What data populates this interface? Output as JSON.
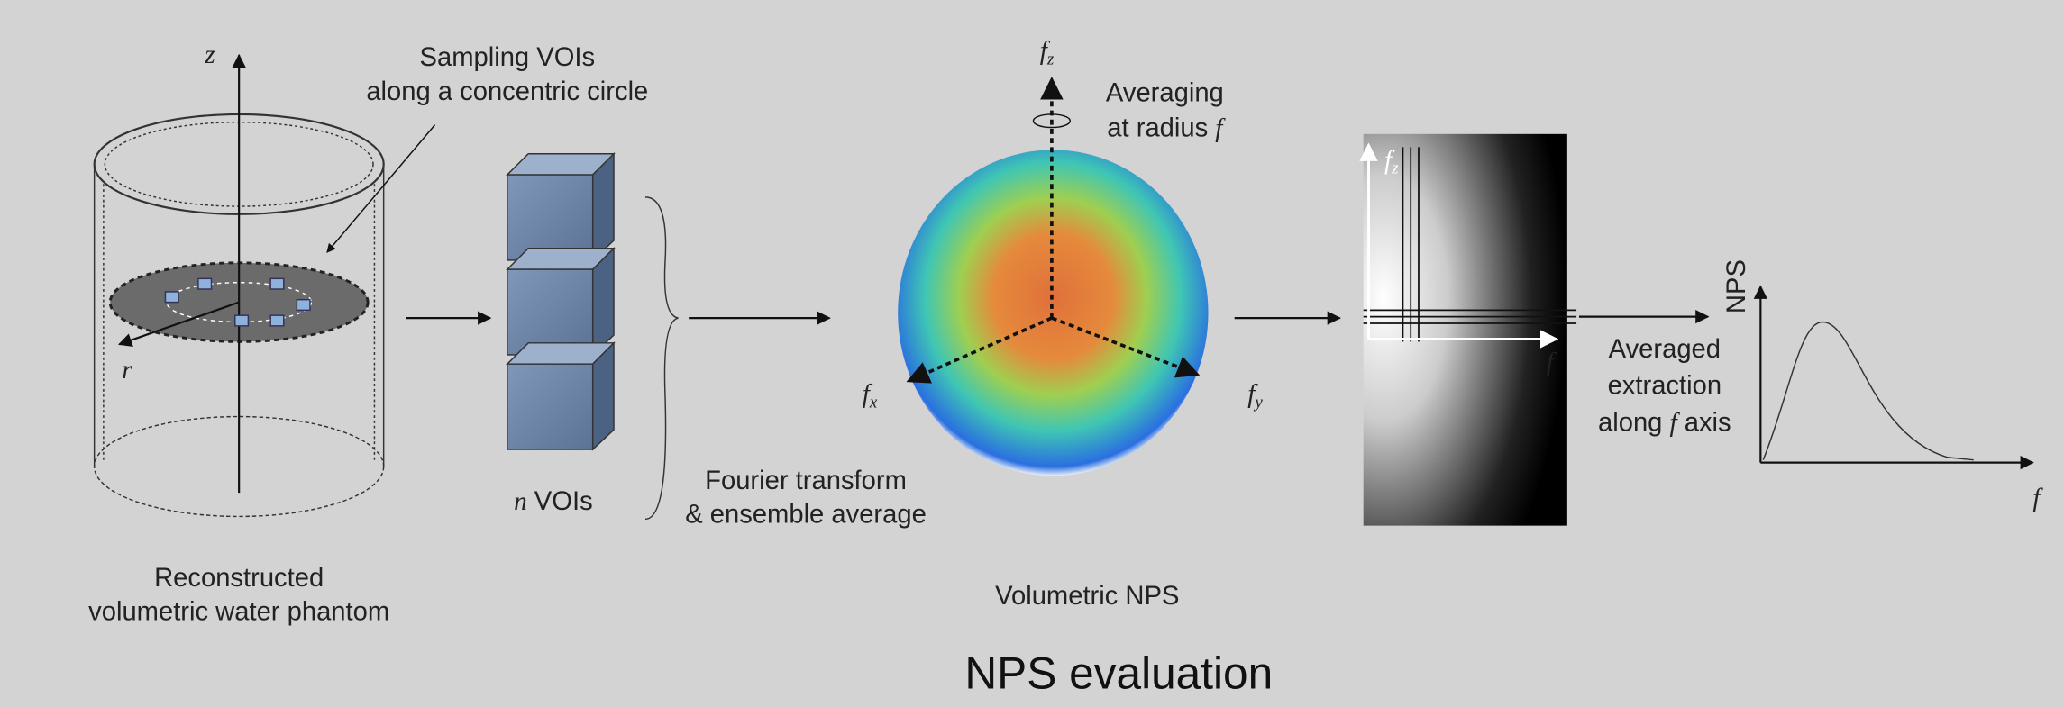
{
  "title": "NPS evaluation",
  "phantom": {
    "axis_z": "z",
    "axis_r": "r",
    "callout": [
      "Sampling VOIs",
      "along a concentric circle"
    ],
    "caption": [
      "Reconstructed",
      "volumetric water phantom"
    ]
  },
  "vois": {
    "count_symbol": "n",
    "caption": "VOIs",
    "transform": [
      "Fourier transform",
      "& ensemble average"
    ]
  },
  "sphere": {
    "axes": [
      {
        "base": "f",
        "sub": "z"
      },
      {
        "base": "f",
        "sub": "x"
      },
      {
        "base": "f",
        "sub": "y"
      }
    ],
    "averaging": [
      "Averaging",
      "at radius"
    ],
    "radius_symbol": "f",
    "caption": "Volumetric NPS"
  },
  "slice": {
    "axes": [
      {
        "base": "f",
        "sub": "z"
      },
      {
        "base": "f"
      }
    ]
  },
  "extraction": {
    "caption": [
      "Averaged",
      "extraction",
      "along"
    ],
    "axis_symbol": "f",
    "axis_word": "axis"
  },
  "plot": {
    "ylabel": "NPS",
    "xlabel": "f"
  }
}
